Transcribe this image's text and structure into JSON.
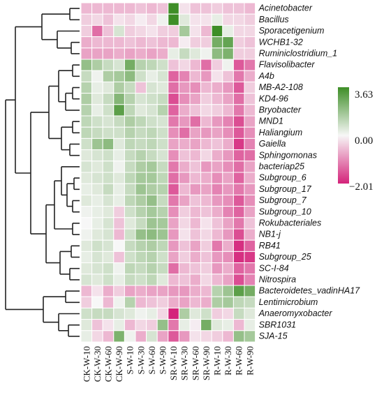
{
  "chart_data": {
    "type": "heatmap",
    "rows": [
      "Acinetobacter",
      "Bacillus",
      "Sporacetigenium",
      "WCHB1-32",
      "Ruminiclostridium_1",
      "Flavisolibacter",
      "A4b",
      "MB-A2-108",
      "KD4-96",
      "Bryobacter",
      "MND1",
      "Haliangium",
      "Gaiella",
      "Sphingomonas",
      "bacteriap25",
      "Subgroup_6",
      "Subgroup_17",
      "Subgroup_7",
      "Subgroup_10",
      "Rokubacteriales",
      "NB1-j",
      "RB41",
      "Subgroup_25",
      "SC-I-84",
      "Nitrospira",
      "Bacteroidetes_vadinHA17",
      "Lentimicrobium",
      "Anaeromyxobacter",
      "SBR1031",
      "SJA-15"
    ],
    "columns": [
      "CK-W-10",
      "CK-W-30",
      "CK-W-60",
      "CK-W-90",
      "S-W-10",
      "S-W-30",
      "S-W-60",
      "S-W-90",
      "SR-W-10",
      "SR-W-30",
      "SR-W-60",
      "SR-W-90",
      "R-W-10",
      "R-W-30",
      "R-W-60",
      "R-W-90"
    ],
    "values": [
      [
        -0.6,
        -0.6,
        -0.6,
        -0.6,
        -0.6,
        -0.5,
        -0.6,
        -0.5,
        3.4,
        -0.2,
        -0.5,
        -0.5,
        -0.4,
        -0.5,
        -0.5,
        -0.6
      ],
      [
        -0.4,
        -0.3,
        -0.5,
        -0.2,
        -0.3,
        -0.1,
        -0.3,
        0.1,
        2.3,
        0.3,
        -0.2,
        -0.2,
        0.2,
        -0.3,
        -0.3,
        -0.4
      ],
      [
        -0.4,
        -1.3,
        -0.5,
        0.4,
        -0.4,
        -0.3,
        -0.2,
        -0.4,
        -0.4,
        1.0,
        -0.2,
        -0.6,
        2.5,
        0.2,
        -0.3,
        -0.3
      ],
      [
        -0.7,
        -0.6,
        -0.6,
        -0.6,
        -0.5,
        -0.6,
        -0.5,
        -0.6,
        -0.6,
        -0.1,
        -0.4,
        -0.4,
        1.6,
        1.8,
        -0.4,
        -0.5
      ],
      [
        -0.8,
        -0.8,
        -0.8,
        -0.7,
        -0.8,
        -0.7,
        -0.8,
        -0.7,
        0.2,
        0.6,
        0.3,
        0.1,
        1.3,
        1.5,
        -0.4,
        -0.4
      ],
      [
        1.2,
        0.9,
        0.6,
        0.4,
        1.6,
        0.8,
        0.7,
        0.5,
        -0.5,
        -0.3,
        -0.6,
        -1.3,
        -0.4,
        0.1,
        -1.5,
        -1.2
      ],
      [
        0.6,
        0.1,
        0.9,
        1.0,
        1.3,
        0.5,
        0.2,
        0.4,
        -1.4,
        -1.1,
        -0.6,
        -0.9,
        -0.2,
        -0.5,
        -1.2,
        -0.7
      ],
      [
        0.8,
        0.2,
        0.3,
        0.9,
        0.6,
        -0.5,
        0.4,
        0.3,
        -1.3,
        -0.9,
        -1.0,
        -0.6,
        -0.7,
        -0.9,
        -1.5,
        -0.4
      ],
      [
        0.9,
        0.3,
        0.6,
        1.4,
        0.8,
        0.4,
        0.5,
        0.6,
        -1.6,
        -1.0,
        -0.8,
        -0.4,
        -0.6,
        -0.8,
        -1.3,
        -0.5
      ],
      [
        0.8,
        0.2,
        0.5,
        1.9,
        0.7,
        0.3,
        0.4,
        0.8,
        -1.4,
        -0.7,
        -0.5,
        -0.3,
        -0.4,
        -0.6,
        -1.2,
        -0.6
      ],
      [
        0.7,
        0.5,
        0.4,
        0.6,
        0.9,
        0.7,
        0.5,
        0.4,
        -1.2,
        -0.9,
        -1.3,
        -0.6,
        -0.9,
        -1.1,
        -1.6,
        -0.8
      ],
      [
        0.7,
        0.6,
        0.5,
        0.5,
        0.8,
        0.6,
        0.7,
        0.5,
        -1.0,
        -1.3,
        -0.8,
        -0.9,
        -0.8,
        -1.0,
        -1.5,
        -1.0
      ],
      [
        0.5,
        1.1,
        1.3,
        0.3,
        0.7,
        0.6,
        0.7,
        0.5,
        -0.8,
        -0.7,
        -0.8,
        -0.6,
        -0.5,
        -0.7,
        -1.8,
        -1.1
      ],
      [
        0.3,
        0.4,
        0.5,
        0.2,
        0.6,
        0.8,
        0.6,
        0.4,
        -1.0,
        -0.5,
        -0.6,
        -0.3,
        -0.7,
        -0.9,
        -1.4,
        -1.3
      ],
      [
        0.4,
        0.3,
        0.5,
        0.1,
        0.6,
        0.9,
        1.0,
        0.6,
        -1.2,
        -0.7,
        -0.5,
        -0.9,
        -0.8,
        -1.0,
        -1.3,
        -0.8
      ],
      [
        0.3,
        0.4,
        0.5,
        0.3,
        0.7,
        1.0,
        1.0,
        0.7,
        -1.3,
        -0.9,
        -0.6,
        -0.7,
        -1.0,
        -0.8,
        -1.4,
        -0.7
      ],
      [
        0.2,
        0.3,
        0.6,
        0.2,
        0.6,
        1.1,
        0.9,
        0.8,
        -1.5,
        -0.6,
        -0.9,
        -0.8,
        -1.1,
        -0.9,
        -1.2,
        -0.9
      ],
      [
        0.3,
        0.2,
        0.4,
        0.2,
        0.7,
        0.9,
        1.2,
        0.6,
        -1.2,
        -0.8,
        -0.5,
        -0.6,
        -0.9,
        -1.0,
        -1.5,
        -1.0
      ],
      [
        0.1,
        0.2,
        0.3,
        -0.4,
        0.5,
        0.8,
        1.0,
        0.8,
        -1.0,
        -0.4,
        -0.6,
        -0.5,
        -0.7,
        -1.1,
        -1.4,
        -0.8
      ],
      [
        0.0,
        0.2,
        0.4,
        -0.5,
        0.3,
        0.6,
        1.1,
        1.0,
        -0.8,
        -0.3,
        -0.6,
        -0.2,
        -0.5,
        -0.8,
        -1.2,
        -0.5
      ],
      [
        0.1,
        0.3,
        0.4,
        -0.6,
        0.5,
        1.2,
        1.3,
        1.1,
        -0.9,
        -0.2,
        -0.5,
        -0.3,
        -0.6,
        -0.9,
        -1.6,
        -0.7
      ],
      [
        0.3,
        0.5,
        0.4,
        0.0,
        0.6,
        0.8,
        0.9,
        0.7,
        -0.9,
        -0.5,
        -0.8,
        -0.4,
        -1.2,
        -0.7,
        -1.9,
        -1.4
      ],
      [
        0.2,
        0.4,
        0.3,
        -0.5,
        0.5,
        0.7,
        0.8,
        0.5,
        -0.8,
        -0.4,
        -0.7,
        -0.5,
        -0.9,
        -1.0,
        -1.9,
        -1.8
      ],
      [
        0.3,
        0.4,
        0.5,
        0.1,
        0.7,
        0.6,
        0.8,
        0.6,
        -1.3,
        -0.6,
        -0.5,
        -0.4,
        -0.9,
        -0.7,
        -1.4,
        -1.2
      ],
      [
        0.4,
        0.3,
        0.5,
        0.2,
        0.6,
        0.5,
        0.7,
        0.3,
        -0.6,
        -0.5,
        -0.7,
        -0.3,
        -0.6,
        -0.8,
        -1.6,
        -1.1
      ],
      [
        -0.6,
        -0.2,
        -0.7,
        -0.4,
        -0.8,
        -0.7,
        -0.8,
        -0.8,
        -0.9,
        -0.9,
        -0.7,
        -0.6,
        0.8,
        1.1,
        1.9,
        1.6
      ],
      [
        -0.4,
        0.0,
        -0.6,
        0.1,
        0.8,
        -0.6,
        -0.5,
        -0.4,
        -0.7,
        -0.8,
        -0.6,
        -0.7,
        0.9,
        1.0,
        0.7,
        0.6
      ],
      [
        0.5,
        0.6,
        0.6,
        0.4,
        0.3,
        0.1,
        0.2,
        -0.3,
        -2.0,
        0.9,
        0.3,
        0.5,
        -0.4,
        -0.3,
        0.6,
        0.3
      ],
      [
        0.3,
        -0.5,
        -0.2,
        0.2,
        -0.6,
        -0.3,
        -0.4,
        1.2,
        -1.2,
        0.2,
        -0.1,
        1.6,
        0.3,
        0.2,
        -0.6,
        0.2
      ],
      [
        0.2,
        -0.3,
        -0.6,
        1.5,
        0.1,
        -0.7,
        0.4,
        -0.8,
        -1.5,
        -0.9,
        -0.2,
        -0.3,
        -0.4,
        -0.6,
        1.2,
        1.0
      ]
    ],
    "colorscale": {
      "min": -2.01,
      "mid": 0.0,
      "max": 3.63,
      "min_color": "#d4237a",
      "mid_color": "#f7f7f7",
      "max_color": "#3e8e27"
    },
    "scale_labels": [
      "3.63",
      "0.00",
      "−2.01"
    ],
    "legend_position": "right",
    "row_dendrogram": true
  }
}
